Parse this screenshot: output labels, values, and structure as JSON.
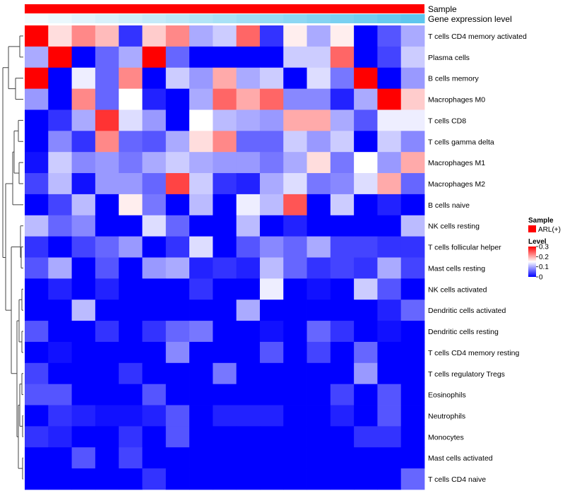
{
  "chart_data": {
    "type": "heatmap",
    "title": "",
    "column_annotations": [
      {
        "name": "Sample",
        "kind": "categorical",
        "label": "Sample"
      },
      {
        "name": "Gene expression level",
        "kind": "gradient",
        "label": "Gene expression level",
        "from_color": "#f4fbfe",
        "to_color": "#5ec6ee"
      }
    ],
    "sample_legend": {
      "title": "Sample",
      "entries": [
        {
          "label": "ARL(+)",
          "color": "#ff0000"
        }
      ]
    },
    "level_legend": {
      "title": "Level",
      "ticks": [
        {
          "value": 0.3,
          "label": "0.3"
        },
        {
          "value": 0.2,
          "label": "0.2"
        },
        {
          "value": 0.1,
          "label": "0.1"
        },
        {
          "value": 0.0,
          "label": "0"
        }
      ],
      "range": [
        0,
        0.3
      ],
      "colors": [
        "#0000ff",
        "#ffffff",
        "#ff0000"
      ]
    },
    "column_count": 17,
    "rows": [
      "T cells CD4 memory activated",
      "Plasma cells",
      "B cells memory",
      "Macrophages M0",
      "T cells CD8",
      "T cells gamma delta",
      "Macrophages M1",
      "Macrophages M2",
      "B cells naive",
      "NK cells resting",
      "T cells follicular helper",
      "Mast cells resting",
      "NK cells activated",
      "Dendritic cells activated",
      "Dendritic cells resting",
      "T cells CD4 memory resting",
      "T cells regulatory  Tregs",
      "Eosinophils",
      "Neutrophils",
      "Monocytes",
      "Mast cells activated",
      "T cells CD4 naive"
    ],
    "values": [
      [
        0.3,
        0.17,
        0.22,
        0.19,
        0.03,
        0.18,
        0.22,
        0.1,
        0.12,
        0.24,
        0.03,
        0.16,
        0.1,
        0.16,
        0.0,
        0.05,
        0.1
      ],
      [
        0.1,
        0.3,
        0.0,
        0.06,
        0.1,
        0.3,
        0.06,
        0.0,
        0.0,
        0.0,
        0.0,
        0.12,
        0.12,
        0.24,
        0.0,
        0.04,
        0.12
      ],
      [
        0.3,
        0.0,
        0.14,
        0.06,
        0.22,
        0.0,
        0.12,
        0.09,
        0.2,
        0.1,
        0.12,
        0.0,
        0.13,
        0.07,
        0.3,
        0.0,
        0.09
      ],
      [
        0.09,
        0.0,
        0.22,
        0.06,
        0.15,
        0.02,
        0.0,
        0.1,
        0.24,
        0.2,
        0.24,
        0.08,
        0.08,
        0.02,
        0.1,
        0.3,
        0.18
      ],
      [
        0.0,
        0.03,
        0.1,
        0.27,
        0.13,
        0.09,
        0.0,
        0.15,
        0.11,
        0.1,
        0.09,
        0.2,
        0.2,
        0.1,
        0.05,
        0.14,
        0.14
      ],
      [
        0.0,
        0.08,
        0.03,
        0.22,
        0.06,
        0.05,
        0.1,
        0.17,
        0.22,
        0.06,
        0.06,
        0.12,
        0.09,
        0.12,
        0.0,
        0.12,
        0.08
      ],
      [
        0.01,
        0.12,
        0.08,
        0.09,
        0.07,
        0.1,
        0.12,
        0.1,
        0.09,
        0.09,
        0.07,
        0.1,
        0.17,
        0.07,
        0.15,
        0.09,
        0.2
      ],
      [
        0.04,
        0.11,
        0.01,
        0.09,
        0.09,
        0.06,
        0.26,
        0.12,
        0.03,
        0.02,
        0.1,
        0.13,
        0.07,
        0.08,
        0.13,
        0.2,
        0.06
      ],
      [
        0.0,
        0.04,
        0.11,
        0.0,
        0.16,
        0.07,
        0.0,
        0.11,
        0.0,
        0.14,
        0.11,
        0.25,
        0.0,
        0.12,
        0.0,
        0.02,
        0.0
      ],
      [
        0.11,
        0.06,
        0.08,
        0.0,
        0.0,
        0.13,
        0.06,
        0.0,
        0.0,
        0.11,
        0.0,
        0.02,
        0.0,
        0.0,
        0.0,
        0.0,
        0.11
      ],
      [
        0.03,
        0.0,
        0.04,
        0.06,
        0.09,
        0.0,
        0.03,
        0.13,
        0.0,
        0.05,
        0.08,
        0.06,
        0.1,
        0.04,
        0.04,
        0.03,
        0.03
      ],
      [
        0.05,
        0.1,
        0.0,
        0.05,
        0.0,
        0.09,
        0.1,
        0.02,
        0.03,
        0.02,
        0.11,
        0.06,
        0.03,
        0.04,
        0.03,
        0.1,
        0.04
      ],
      [
        0.0,
        0.02,
        0.0,
        0.02,
        0.0,
        0.0,
        0.0,
        0.03,
        0.0,
        0.0,
        0.14,
        0.0,
        0.01,
        0.0,
        0.12,
        0.05,
        0.0
      ],
      [
        0.0,
        0.0,
        0.11,
        0.0,
        0.0,
        0.0,
        0.0,
        0.0,
        0.0,
        0.1,
        0.0,
        0.0,
        0.0,
        0.0,
        0.0,
        0.02,
        0.06
      ],
      [
        0.05,
        0.0,
        0.0,
        0.03,
        0.0,
        0.03,
        0.06,
        0.07,
        0.0,
        0.0,
        0.01,
        0.0,
        0.06,
        0.03,
        0.0,
        0.01,
        0.0
      ],
      [
        0.0,
        0.01,
        0.0,
        0.0,
        0.0,
        0.0,
        0.08,
        0.0,
        0.0,
        0.0,
        0.05,
        0.0,
        0.04,
        0.0,
        0.06,
        0.0,
        0.0
      ],
      [
        0.04,
        0.0,
        0.0,
        0.0,
        0.03,
        0.0,
        0.0,
        0.0,
        0.07,
        0.0,
        0.0,
        0.0,
        0.0,
        0.0,
        0.09,
        0.0,
        0.0
      ],
      [
        0.05,
        0.05,
        0.0,
        0.0,
        0.0,
        0.05,
        0.0,
        0.0,
        0.0,
        0.0,
        0.0,
        0.0,
        0.0,
        0.04,
        0.0,
        0.05,
        0.0
      ],
      [
        0.0,
        0.03,
        0.02,
        0.01,
        0.01,
        0.02,
        0.05,
        0.0,
        0.02,
        0.02,
        0.02,
        0.0,
        0.0,
        0.02,
        0.0,
        0.05,
        0.0
      ],
      [
        0.03,
        0.02,
        0.0,
        0.0,
        0.03,
        0.0,
        0.05,
        0.0,
        0.0,
        0.0,
        0.0,
        0.0,
        0.0,
        0.0,
        0.03,
        0.03,
        0.0
      ],
      [
        0.0,
        0.0,
        0.05,
        0.0,
        0.04,
        0.0,
        0.0,
        0.0,
        0.0,
        0.0,
        0.0,
        0.0,
        0.0,
        0.0,
        0.0,
        0.0,
        0.0
      ],
      [
        0.0,
        0.0,
        0.0,
        0.0,
        0.0,
        0.03,
        0.0,
        0.0,
        0.0,
        0.0,
        0.0,
        0.0,
        0.0,
        0.0,
        0.0,
        0.0,
        0.06
      ]
    ]
  }
}
